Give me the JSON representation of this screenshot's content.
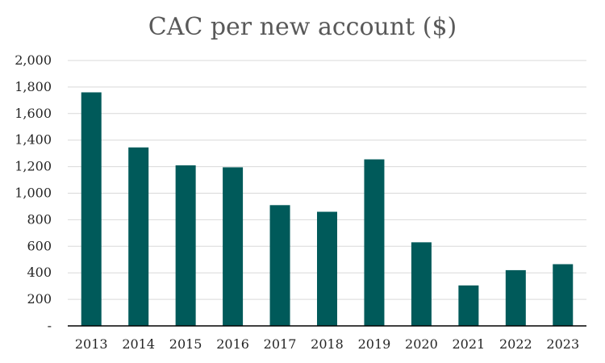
{
  "chart_data": {
    "type": "bar",
    "title": "CAC per new account ($)",
    "xlabel": "",
    "ylabel": "",
    "categories": [
      "2013",
      "2014",
      "2015",
      "2016",
      "2017",
      "2018",
      "2019",
      "2020",
      "2021",
      "2022",
      "2023"
    ],
    "series": [
      {
        "values": [
          1760,
          1345,
          1210,
          1195,
          910,
          860,
          1255,
          630,
          305,
          420,
          465
        ]
      }
    ],
    "ylim": [
      0,
      2000
    ],
    "y_ticks": [
      0,
      200,
      400,
      600,
      800,
      1000,
      1200,
      1400,
      1600,
      1800,
      2000
    ],
    "y_tick_labels": [
      "-",
      "200",
      "400",
      "600",
      "800",
      "1,000",
      "1,200",
      "1,400",
      "1,600",
      "1,800",
      "2,000"
    ],
    "grid": true,
    "legend": "none",
    "colors": {
      "bar": "#005a5a",
      "grid": "#d9d9d9",
      "axis": "#000000",
      "title": "#595959",
      "tick_text": "#262626"
    }
  }
}
